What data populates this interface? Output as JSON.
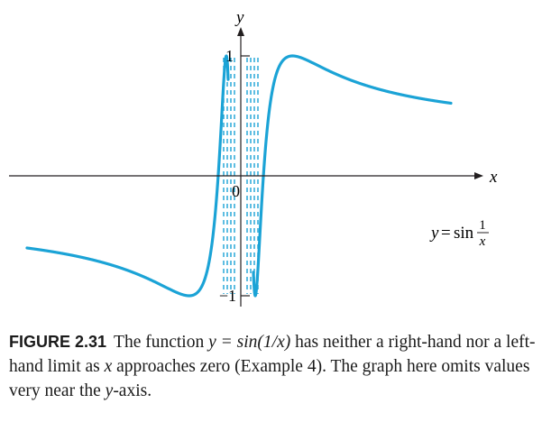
{
  "chart_data": {
    "type": "line",
    "function": "y = sin(1/x)",
    "series": [
      {
        "name": "y = sin 1/x",
        "expression": "sin(1/x)",
        "x_domain_omitted_near_zero": true
      }
    ],
    "axes": {
      "xlabel": "x",
      "ylabel": "y",
      "xlim": [
        -0.5,
        0.5
      ],
      "ylim": [
        -1.3,
        1.3
      ],
      "y_ticks": [
        "1",
        "−1"
      ],
      "origin_label": "0"
    },
    "curve_label": {
      "lhs": "y",
      "eq": "=",
      "fn": "sin",
      "num": "1",
      "den": "x"
    },
    "colors": {
      "curve": "#1ba3d6",
      "axis": "#231f20"
    },
    "grid": false,
    "legend": "none"
  },
  "caption": {
    "label": "FIGURE 2.31",
    "text_before": "The function ",
    "math": "y = sin(1/x)",
    "text_after": " has neither a right-hand nor a left-hand limit as ",
    "var": "x",
    "text_after2": " approaches zero (Example 4). The graph here omits values very near the ",
    "yaxis_var": "y",
    "text_end": "-axis."
  }
}
